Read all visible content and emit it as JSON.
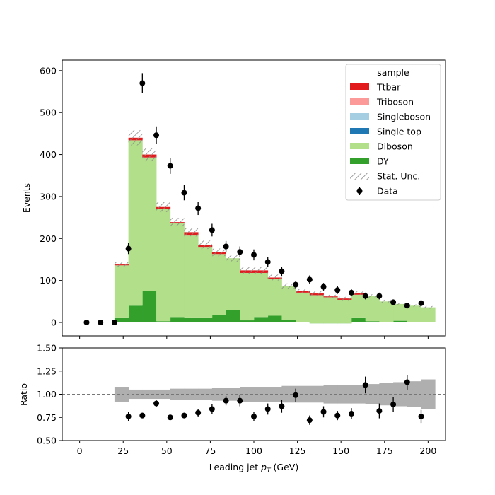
{
  "chart_data": [
    {
      "type": "bar",
      "subtype": "stacked-histogram",
      "title": "",
      "xlabel": "",
      "ylabel": "Events",
      "xlim": [
        -10,
        210
      ],
      "ylim": [
        -32,
        625
      ],
      "yticks": [
        0,
        100,
        200,
        300,
        400,
        500,
        600
      ],
      "xticks": [
        0,
        25,
        50,
        75,
        100,
        125,
        150,
        175,
        200
      ],
      "bin_edges": [
        20,
        28,
        36,
        44,
        52,
        60,
        68,
        76,
        84,
        92,
        100,
        108,
        116,
        124,
        132,
        140,
        148,
        156,
        164,
        172,
        180,
        188,
        196,
        204
      ],
      "series": [
        {
          "name": "DY",
          "color": "#33a02c",
          "values": [
            12,
            40,
            75,
            3,
            13,
            12,
            12,
            18,
            30,
            5,
            13,
            16,
            6,
            0,
            -2,
            -2,
            -2,
            12,
            3,
            0,
            4,
            0,
            0
          ]
        },
        {
          "name": "Diboson",
          "color": "#b2df8a",
          "values": [
            124,
            394,
            318,
            267,
            223,
            195,
            168,
            145,
            123,
            113,
            105,
            88,
            81,
            71,
            67,
            62,
            56,
            54,
            60,
            50,
            40,
            40,
            36
          ]
        },
        {
          "name": "Single top",
          "color": "#1f78b4",
          "values": [
            0,
            0,
            0,
            0,
            0,
            0,
            0,
            0,
            0,
            0,
            0,
            0,
            0,
            0,
            0,
            0,
            0,
            0,
            0,
            0,
            0,
            0,
            0
          ]
        },
        {
          "name": "Singleboson",
          "color": "#a6cee3",
          "values": [
            0,
            0,
            0,
            0,
            0,
            0,
            0,
            0,
            0,
            0,
            0,
            0,
            0,
            0,
            0,
            0,
            0,
            0,
            0,
            0,
            0,
            0,
            0
          ]
        },
        {
          "name": "Triboson",
          "color": "#fb9a99",
          "values": [
            0,
            0,
            0,
            0,
            0,
            0,
            0,
            0,
            0,
            0,
            0,
            0,
            0,
            0,
            0,
            0,
            0,
            0,
            0,
            0,
            0,
            0,
            0
          ]
        },
        {
          "name": "Ttbar",
          "color": "#e31a1c",
          "values": [
            2,
            6,
            7,
            5,
            3,
            8,
            5,
            4,
            0,
            6,
            6,
            3,
            0,
            4,
            4,
            2,
            3,
            4,
            0,
            0,
            0,
            0,
            0
          ]
        }
      ],
      "stat_unc": [
        6,
        18,
        16,
        12,
        10,
        10,
        10,
        9,
        8,
        8,
        8,
        7,
        6,
        5,
        5,
        4,
        4,
        4,
        4,
        4,
        3,
        3,
        3
      ],
      "data": {
        "name": "Data",
        "x": [
          4,
          12,
          20,
          28,
          36,
          44,
          52,
          60,
          68,
          76,
          84,
          92,
          100,
          108,
          116,
          124,
          132,
          140,
          148,
          156,
          164,
          172,
          180,
          188,
          196
        ],
        "y": [
          0,
          0,
          0,
          176,
          570,
          446,
          373,
          309,
          272,
          220,
          181,
          168,
          161,
          144,
          122,
          90,
          102,
          85,
          77,
          71,
          63,
          63,
          48,
          40,
          46
        ],
        "yerr": [
          0,
          0,
          0,
          13,
          24,
          21,
          19,
          18,
          16,
          15,
          13,
          13,
          13,
          12,
          11,
          9,
          10,
          9,
          9,
          8,
          8,
          8,
          7,
          6,
          7
        ]
      },
      "legend": {
        "title": "sample",
        "placement": "top-right",
        "entries": [
          "Ttbar",
          "Triboson",
          "Singleboson",
          "Single top",
          "Diboson",
          "DY",
          "Stat. Unc.",
          "Data"
        ]
      },
      "grid": false
    },
    {
      "type": "scatter",
      "subtype": "ratio",
      "title": "",
      "xlabel": "Leading jet  p_T (GeV)",
      "xlabel_main": "Leading jet ",
      "xlabel_sym": "p",
      "xlabel_sub": "T",
      "xlabel_unit": " (GeV)",
      "ylabel": "Ratio",
      "xlim": [
        -10,
        210
      ],
      "ylim": [
        0.5,
        1.5
      ],
      "yticks": [
        "0.50",
        "0.75",
        "1.00",
        "1.25",
        "1.50"
      ],
      "xticks": [
        "0",
        "25",
        "50",
        "75",
        "100",
        "125",
        "150",
        "175",
        "200"
      ],
      "reference_line": 1.0,
      "unc_band_halfwidth": [
        0.08,
        0.05,
        0.05,
        0.05,
        0.06,
        0.06,
        0.06,
        0.07,
        0.07,
        0.08,
        0.08,
        0.08,
        0.09,
        0.09,
        0.09,
        0.1,
        0.1,
        0.1,
        0.11,
        0.12,
        0.13,
        0.14,
        0.16
      ],
      "x": [
        28,
        36,
        44,
        52,
        60,
        68,
        76,
        84,
        92,
        100,
        108,
        116,
        124,
        132,
        140,
        148,
        156,
        164,
        172,
        180,
        188,
        196
      ],
      "y": [
        0.76,
        0.77,
        0.9,
        0.75,
        0.77,
        0.8,
        0.84,
        0.93,
        0.93,
        0.76,
        0.84,
        0.87,
        0.99,
        0.72,
        0.81,
        0.77,
        0.79,
        1.1,
        0.82,
        0.89,
        1.13,
        0.76
      ],
      "yerr": [
        0.05,
        0.03,
        0.04,
        0.02,
        0.03,
        0.04,
        0.05,
        0.05,
        0.06,
        0.05,
        0.06,
        0.07,
        0.07,
        0.05,
        0.06,
        0.05,
        0.06,
        0.09,
        0.08,
        0.08,
        0.08,
        0.07
      ]
    }
  ]
}
